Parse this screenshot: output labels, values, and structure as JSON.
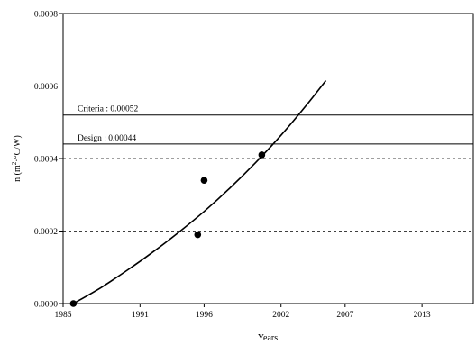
{
  "chart_data": {
    "type": "scatter",
    "xlabel": "Years",
    "ylabel": "n (m²·°C/W)",
    "ylabel_parts": {
      "pre": "n (m",
      "sup1": "2",
      "mid": "·°C/W)"
    },
    "xlim": [
      1985,
      2017
    ],
    "ylim": [
      0,
      0.0008
    ],
    "x_ticks": [
      1985,
      1991,
      1996,
      2002,
      2007,
      2013
    ],
    "y_ticks": [
      0,
      0.0002,
      0.0004,
      0.0006,
      0.0008
    ],
    "y_tick_labels": [
      "0.0000",
      "0.0002",
      "0.0004",
      "0.0006",
      "0.0008"
    ],
    "grid": {
      "horizontal_dashed_at": [
        0.0002,
        0.0004,
        0.0006
      ]
    },
    "reference_lines": [
      {
        "label": "Criteria : 0.00052",
        "y": 0.00052
      },
      {
        "label": "Design : 0.00044",
        "y": 0.00044
      }
    ],
    "points": [
      {
        "x": 1985.8,
        "y": 0.0
      },
      {
        "x": 1995.5,
        "y": 0.00019
      },
      {
        "x": 1996.0,
        "y": 0.00034
      },
      {
        "x": 2000.5,
        "y": 0.00041
      }
    ],
    "trend_curve": {
      "x": [
        1985.8,
        1988,
        1990,
        1992,
        1994,
        1996,
        1998,
        2000,
        2002,
        2004,
        2005.5
      ],
      "y": [
        0.0,
        4.5e-05,
        9.2e-05,
        0.000142,
        0.000196,
        0.000254,
        0.000318,
        0.000388,
        0.000464,
        0.000548,
        0.000615
      ]
    }
  }
}
